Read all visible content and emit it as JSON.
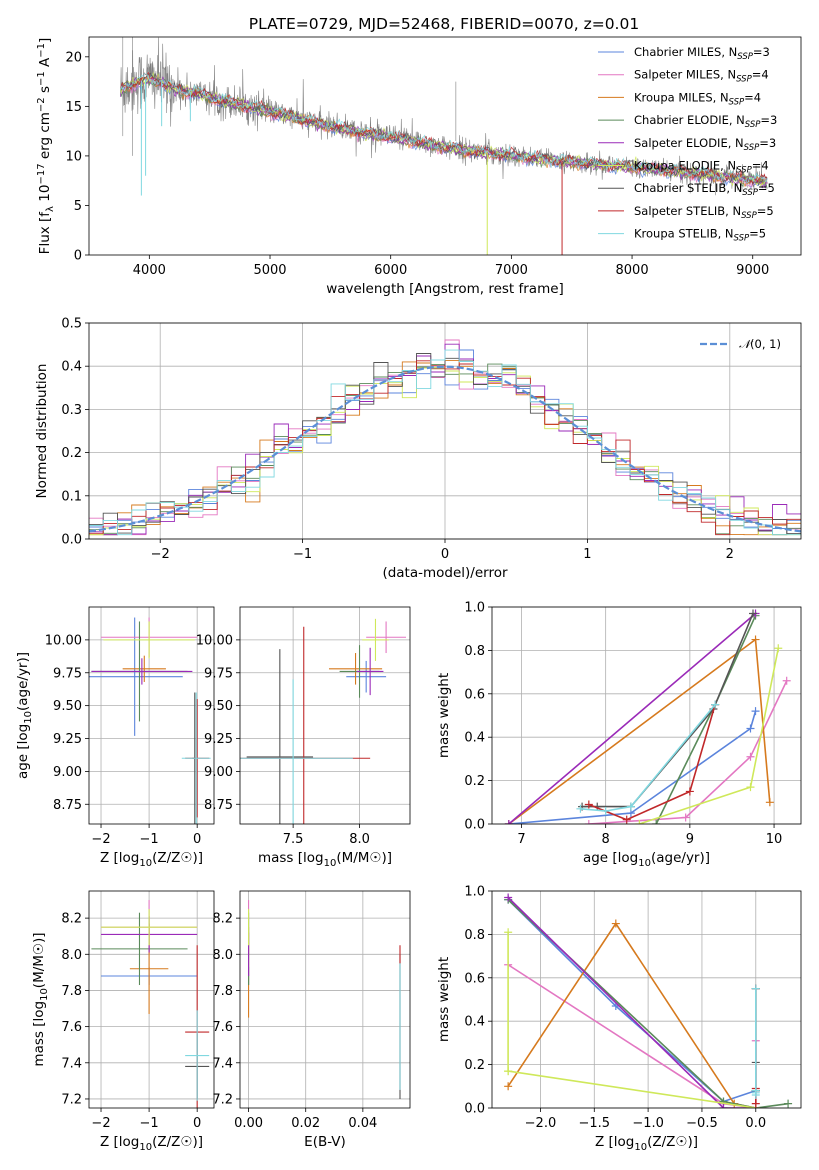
{
  "figure": {
    "title": "PLATE=0729, MJD=52468, FIBERID=0070, z=0.01"
  },
  "series": [
    {
      "key": "chab_miles",
      "name": "Chabrier MILES, N<sub>SSP</sub>=3",
      "legend_label": "Chabrier MILES, N",
      "nssp": "=3",
      "color": "#5b84dc"
    },
    {
      "key": "salp_miles",
      "name": "Salpeter MILES, N<sub>SSP</sub>=4",
      "legend_label": "Salpeter MILES, N",
      "nssp": "=4",
      "color": "#e377c2"
    },
    {
      "key": "krou_miles",
      "name": "Kroupa MILES, N<sub>SSP</sub>=4",
      "legend_label": "Kroupa MILES, N",
      "nssp": "=4",
      "color": "#d67a1e"
    },
    {
      "key": "chab_elodie",
      "name": "Chabrier ELODIE, N<sub>SSP</sub>=3",
      "legend_label": "Chabrier ELODIE, N",
      "nssp": "=3",
      "color": "#5a8a5a"
    },
    {
      "key": "salp_elodie",
      "name": "Salpeter ELODIE, N<sub>SSP</sub>=3",
      "legend_label": "Salpeter ELODIE, N",
      "nssp": "=3",
      "color": "#9a2ab8"
    },
    {
      "key": "krou_elodie",
      "name": "Kroupa ELODIE, N<sub>SSP</sub>=4",
      "legend_label": "Kroupa ELODIE, N",
      "nssp": "=4",
      "color": "#cfe85a"
    },
    {
      "key": "chab_stelib",
      "name": "Chabrier STELIB, N<sub>SSP</sub>=5",
      "legend_label": "Chabrier STELIB, N",
      "nssp": "=5",
      "color": "#555555"
    },
    {
      "key": "salp_stelib",
      "name": "Salpeter STELIB, N<sub>SSP</sub>=5",
      "legend_label": "Salpeter STELIB, N",
      "nssp": "=5",
      "color": "#c0282a"
    },
    {
      "key": "krou_stelib",
      "name": "Kroupa STELIB, N<sub>SSP</sub>=5",
      "legend_label": "Kroupa STELIB, N",
      "nssp": "=5",
      "color": "#80d8e0"
    }
  ],
  "legend_sub": "SSP",
  "chart_data": [
    {
      "id": "spectrum",
      "type": "line",
      "xlabel": "wavelength [Angstrom, rest frame]",
      "ylabel": "Flux [f_λ 10^-17 erg cm^-2 s^-1 A^-1]",
      "xlim": [
        3500,
        9400
      ],
      "ylim": [
        0,
        22
      ],
      "xticks": [
        4000,
        5000,
        6000,
        7000,
        8000,
        9000
      ],
      "yticks": [
        0,
        5,
        10,
        15,
        20
      ],
      "grid": false,
      "legend": "top-right",
      "data_color": "#808080",
      "continuum": {
        "x": [
          3750,
          3800,
          3900,
          4000,
          4100,
          4200,
          4400,
          4600,
          4800,
          5000,
          5200,
          5400,
          5600,
          5800,
          6000,
          6200,
          6400,
          6600,
          6800,
          7000,
          7200,
          7400,
          7600,
          7800,
          8000,
          8200,
          8400,
          8600,
          8800,
          9000,
          9120
        ],
        "y": [
          16.5,
          17.0,
          17.5,
          17.8,
          17.5,
          16.8,
          16.3,
          15.6,
          15.1,
          14.5,
          13.9,
          13.3,
          12.8,
          12.3,
          11.9,
          11.5,
          11.0,
          10.6,
          10.3,
          10.1,
          9.8,
          9.5,
          9.3,
          9.1,
          8.9,
          8.7,
          8.4,
          8.2,
          7.9,
          7.6,
          7.4
        ]
      },
      "model_dips": [
        {
          "x": 3934,
          "y": 6
        },
        {
          "x": 3969,
          "y": 8
        },
        {
          "x": 4102,
          "y": 13
        },
        {
          "x": 4340,
          "y": 13.5
        },
        {
          "x": 6800,
          "y": 0
        },
        {
          "x": 7420,
          "y": 0
        }
      ]
    },
    {
      "id": "residuals",
      "type": "histogram",
      "xlabel": "(data-model)/error",
      "ylabel": "Normed distribution",
      "xlim": [
        -2.5,
        2.5
      ],
      "ylim": [
        0,
        0.5
      ],
      "xticks": [
        -2,
        -1,
        0,
        1,
        2
      ],
      "yticks": [
        0.0,
        0.1,
        0.2,
        0.3,
        0.4,
        0.5
      ],
      "grid": true,
      "bin_width": 0.1,
      "legend": "top-right",
      "reference_curve": {
        "label": "N(0,1)",
        "color": "#5b8fd6",
        "mu": 0,
        "sigma": 1
      }
    },
    {
      "id": "age_vs_Z",
      "type": "errorbar",
      "xlabel": "Z [log10(Z/Z☉)]",
      "ylabel": "age  [log10(age/yr)]",
      "xlim": [
        -2.25,
        0.35
      ],
      "ylim": [
        8.6,
        10.25
      ],
      "xticks": [
        -2,
        -1,
        0
      ],
      "yticks": [
        8.75,
        9.0,
        9.25,
        9.5,
        9.75,
        10.0
      ],
      "grid": true,
      "points": [
        {
          "s": 0,
          "x": -1.3,
          "xerr": 1.0,
          "y": 9.72,
          "yerr": 0.45
        },
        {
          "s": 1,
          "x": -1.0,
          "xerr": 1.0,
          "y": 10.02,
          "yerr": 0.15
        },
        {
          "s": 2,
          "x": -1.1,
          "xerr": 0.45,
          "y": 9.78,
          "yerr": 0.1
        },
        {
          "s": 3,
          "x": -1.2,
          "xerr": 1.0,
          "y": 9.76,
          "yerr": 0.38
        },
        {
          "s": 4,
          "x": -1.15,
          "xerr": 1.05,
          "y": 9.76,
          "yerr": 0.1
        },
        {
          "s": 5,
          "x": -1.0,
          "xerr": 0.95,
          "y": 10.0,
          "yerr": 0.14
        },
        {
          "s": 6,
          "x": -0.05,
          "xerr": 0.05,
          "y": 9.1,
          "yerr": 0.5
        },
        {
          "s": 7,
          "x": 0.0,
          "xerr": 0.25,
          "y": 9.1,
          "yerr": 0.45
        },
        {
          "s": 8,
          "x": -0.02,
          "xerr": 0.3,
          "y": 9.1,
          "yerr": 0.5
        }
      ]
    },
    {
      "id": "age_vs_mass",
      "type": "errorbar",
      "xlabel": "mass [log10(M/M☉)]",
      "ylabel": "",
      "xlim": [
        7.1,
        8.38
      ],
      "ylim": [
        8.6,
        10.25
      ],
      "xticks": [
        7.5,
        8.0
      ],
      "yticks": [
        8.75,
        9.0,
        9.25,
        9.5,
        9.75,
        10.0
      ],
      "grid": true,
      "points": [
        {
          "s": 0,
          "x": 8.05,
          "xerr": 0.15,
          "y": 9.72,
          "yerr": 0.12
        },
        {
          "s": 1,
          "x": 8.2,
          "xerr": 0.15,
          "y": 10.02,
          "yerr": 0.12
        },
        {
          "s": 2,
          "x": 7.97,
          "xerr": 0.2,
          "y": 9.78,
          "yerr": 0.12
        },
        {
          "s": 3,
          "x": 8.0,
          "xerr": 0.15,
          "y": 9.76,
          "yerr": 0.2
        },
        {
          "s": 4,
          "x": 8.08,
          "xerr": 0.1,
          "y": 9.76,
          "yerr": 0.18
        },
        {
          "s": 5,
          "x": 8.12,
          "xerr": 0.1,
          "y": 10.0,
          "yerr": 0.16
        },
        {
          "s": 6,
          "x": 7.4,
          "xerr": 0.25,
          "y": 9.11,
          "yerr": 0.82
        },
        {
          "s": 7,
          "x": 7.58,
          "xerr": 0.5,
          "y": 9.1,
          "yerr": 1.0
        },
        {
          "s": 8,
          "x": 7.5,
          "xerr": 0.45,
          "y": 9.1,
          "yerr": 0.6
        }
      ]
    },
    {
      "id": "weight_vs_age",
      "type": "line",
      "xlabel": "age  [log10(age/yr)]",
      "ylabel": "mass weight",
      "xlim": [
        6.65,
        10.32
      ],
      "ylim": [
        0,
        1.0
      ],
      "xticks": [
        7,
        8,
        9,
        10
      ],
      "yticks": [
        0.0,
        0.2,
        0.4,
        0.6,
        0.8,
        1.0
      ],
      "grid": true,
      "lines": [
        {
          "s": 0,
          "x": [
            6.85,
            8.3,
            9.72,
            9.78
          ],
          "y": [
            0.0,
            0.05,
            0.44,
            0.52
          ]
        },
        {
          "s": 1,
          "x": [
            7.8,
            8.95,
            9.72,
            10.15
          ],
          "y": [
            0.0,
            0.03,
            0.31,
            0.66
          ]
        },
        {
          "s": 2,
          "x": [
            6.85,
            9.78,
            9.95
          ],
          "y": [
            0.0,
            0.85,
            0.1
          ]
        },
        {
          "s": 3,
          "x": [
            8.6,
            9.3,
            9.78
          ],
          "y": [
            0.0,
            0.55,
            0.96
          ]
        },
        {
          "s": 4,
          "x": [
            6.85,
            9.78
          ],
          "y": [
            0.0,
            0.97
          ]
        },
        {
          "s": 5,
          "x": [
            8.4,
            9.72,
            10.05
          ],
          "y": [
            0.0,
            0.17,
            0.81
          ]
        },
        {
          "s": 6,
          "x": [
            7.72,
            7.9,
            8.3,
            9.28,
            9.75
          ],
          "y": [
            0.08,
            0.08,
            0.08,
            0.53,
            0.97
          ]
        },
        {
          "s": 7,
          "x": [
            7.8,
            8.25,
            9.0,
            9.3
          ],
          "y": [
            0.09,
            0.02,
            0.15,
            0.55
          ]
        },
        {
          "s": 8,
          "x": [
            7.7,
            8.0,
            8.3,
            9.3
          ],
          "y": [
            0.07,
            0.06,
            0.08,
            0.55
          ]
        }
      ]
    },
    {
      "id": "mass_vs_Z",
      "type": "errorbar",
      "xlabel": "Z [log10(Z/Z☉)]",
      "ylabel": "mass [log10(M/M☉)]",
      "xlim": [
        -2.25,
        0.35
      ],
      "ylim": [
        7.15,
        8.35
      ],
      "xticks": [
        -2,
        -1,
        0
      ],
      "yticks": [
        7.2,
        7.4,
        7.6,
        7.8,
        8.0,
        8.2
      ],
      "grid": true,
      "points": [
        {
          "s": 0,
          "x": -1.0,
          "xerr": 1.0,
          "y": 7.88,
          "yerr": 0.05
        },
        {
          "s": 1,
          "x": -1.0,
          "xerr": 1.0,
          "y": 8.15,
          "yerr": 0.15
        },
        {
          "s": 2,
          "x": -1.0,
          "xerr": 0.4,
          "y": 7.92,
          "yerr": 0.25
        },
        {
          "s": 3,
          "x": -1.2,
          "xerr": 1.0,
          "y": 8.03,
          "yerr": 0.2
        },
        {
          "s": 4,
          "x": -1.0,
          "xerr": 1.0,
          "y": 8.11,
          "yerr": 0.1
        },
        {
          "s": 5,
          "x": -1.0,
          "xerr": 1.0,
          "y": 8.15,
          "yerr": 0.1
        },
        {
          "s": 6,
          "x": 0.0,
          "xerr": 0.25,
          "y": 7.38,
          "yerr": 0.18
        },
        {
          "s": 7,
          "x": 0.0,
          "xerr": 0.25,
          "y": 7.57,
          "yerr": 0.48
        },
        {
          "s": 8,
          "x": 0.0,
          "xerr": 0.25,
          "y": 7.44,
          "yerr": 0.25
        }
      ]
    },
    {
      "id": "mass_vs_ebv",
      "type": "errorbar",
      "xlabel": "E(B-V)",
      "ylabel": "",
      "xlim": [
        -0.003,
        0.0565
      ],
      "ylim": [
        7.15,
        8.35
      ],
      "xticks": [
        0.0,
        0.02,
        0.04
      ],
      "yticks": [
        7.2,
        7.4,
        7.6,
        7.8,
        8.0,
        8.2
      ],
      "grid": true,
      "points": [
        {
          "s": 0,
          "x": 0.0,
          "xerr": 0,
          "y": 7.88,
          "yerr": 0.05
        },
        {
          "s": 1,
          "x": 0.0,
          "xerr": 0,
          "y": 8.15,
          "yerr": 0.15
        },
        {
          "s": 2,
          "x": 0.0,
          "xerr": 0,
          "y": 7.9,
          "yerr": 0.25
        },
        {
          "s": 3,
          "x": 0.0,
          "xerr": 0,
          "y": 8.03,
          "yerr": 0.2
        },
        {
          "s": 4,
          "x": 0.0,
          "xerr": 0,
          "y": 8.0,
          "yerr": 0.12
        },
        {
          "s": 5,
          "x": 0.0,
          "xerr": 0,
          "y": 8.15,
          "yerr": 0.1
        },
        {
          "s": 6,
          "x": 0.053,
          "xerr": 0,
          "y": 7.6,
          "yerr": 0.4
        },
        {
          "s": 7,
          "x": 0.053,
          "xerr": 0,
          "y": 7.65,
          "yerr": 0.4
        },
        {
          "s": 8,
          "x": 0.053,
          "xerr": 0,
          "y": 7.6,
          "yerr": 0.35
        }
      ]
    },
    {
      "id": "weight_vs_Z",
      "type": "line",
      "xlabel": "Z [log10(Z/Z☉)]",
      "ylabel": "mass weight",
      "xlim": [
        -2.45,
        0.42
      ],
      "ylim": [
        0,
        1.0
      ],
      "xticks": [
        -2.0,
        -1.5,
        -1.0,
        -0.5,
        0.0
      ],
      "yticks": [
        0.0,
        0.2,
        0.4,
        0.6,
        0.8,
        1.0
      ],
      "grid": true,
      "lines": [
        {
          "s": 0,
          "x": [
            -2.3,
            -1.3,
            -0.3,
            0.0
          ],
          "y": [
            0.96,
            0.47,
            0.03,
            0.08
          ]
        },
        {
          "s": 1,
          "x": [
            -2.3,
            -0.3,
            0.0,
            0.0
          ],
          "y": [
            0.66,
            0.02,
            0.0,
            0.31
          ]
        },
        {
          "s": 2,
          "x": [
            -2.3,
            -1.3,
            -0.2,
            0.0
          ],
          "y": [
            0.1,
            0.85,
            0.02,
            0.0
          ]
        },
        {
          "s": 3,
          "x": [
            -2.3,
            -0.3,
            0.0,
            0.3
          ],
          "y": [
            0.96,
            0.03,
            0.0,
            0.02
          ]
        },
        {
          "s": 4,
          "x": [
            -2.3,
            -0.3,
            0.0
          ],
          "y": [
            0.97,
            0.0,
            0.0
          ]
        },
        {
          "s": 5,
          "x": [
            -2.3,
            -2.3,
            -2.3,
            0.0
          ],
          "y": [
            0.81,
            0.17,
            0.17,
            0.0
          ]
        },
        {
          "s": 6,
          "x": [
            0.0,
            0.0,
            0.0,
            0.0,
            0.0
          ],
          "y": [
            0.08,
            0.21,
            0.55,
            0.08,
            0.08
          ]
        },
        {
          "s": 7,
          "x": [
            0.0,
            0.0,
            0.0
          ],
          "y": [
            0.02,
            0.09,
            0.55
          ]
        },
        {
          "s": 8,
          "x": [
            0.0,
            0.0,
            0.0,
            0.0
          ],
          "y": [
            0.07,
            0.06,
            0.55,
            0.08
          ]
        }
      ]
    }
  ]
}
